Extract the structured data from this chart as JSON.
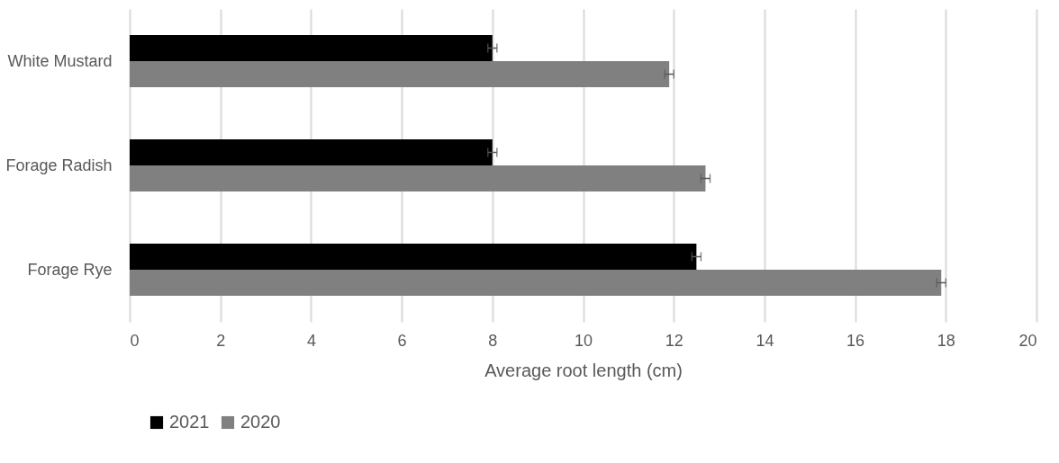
{
  "chart_data": {
    "type": "bar",
    "orientation": "horizontal",
    "xlabel": "Average root length (cm)",
    "categories": [
      "White Mustard",
      "Forage Radish",
      "Forage Rye"
    ],
    "series": [
      {
        "name": "2021",
        "color": "#000000",
        "values": [
          8.0,
          8.0,
          12.5
        ],
        "errors": [
          0.1,
          0.1,
          0.1
        ]
      },
      {
        "name": "2020",
        "color": "#808080",
        "values": [
          11.9,
          12.7,
          17.9
        ],
        "errors": [
          0.1,
          0.1,
          0.1
        ]
      }
    ],
    "xlim": [
      0,
      20
    ],
    "xticks": [
      0,
      2,
      4,
      6,
      8,
      10,
      12,
      14,
      16,
      18,
      20
    ],
    "grid": "x",
    "legend": "bottom"
  }
}
